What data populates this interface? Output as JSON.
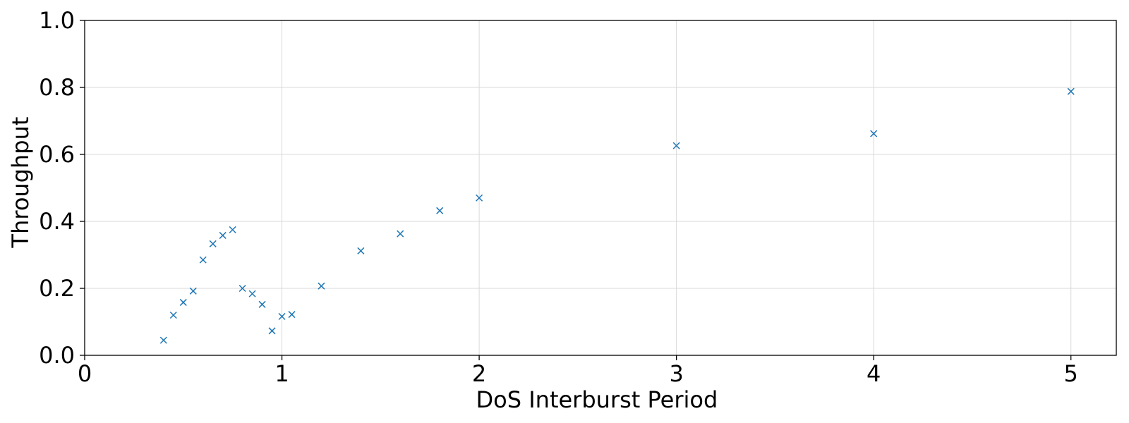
{
  "chart_data": {
    "type": "scatter",
    "title": "",
    "xlabel": "DoS Interburst Period",
    "ylabel": "Throughput",
    "xlim": [
      0,
      5.23
    ],
    "ylim": [
      0,
      1.0
    ],
    "x_ticks": [
      "0",
      "1",
      "2",
      "3",
      "4",
      "5"
    ],
    "y_ticks": [
      "0.0",
      "0.2",
      "0.4",
      "0.6",
      "0.8",
      "1.0"
    ],
    "grid": true,
    "marker": "x",
    "marker_color": "#1f77b4",
    "series": [
      {
        "x": [
          0.4,
          0.45,
          0.5,
          0.55,
          0.6,
          0.65,
          0.7,
          0.75,
          0.8,
          0.85,
          0.9,
          0.95,
          1.0,
          1.05,
          1.2,
          1.4,
          1.6,
          1.8,
          2.0,
          3.0,
          4.0,
          5.0
        ],
        "y": [
          0.045,
          0.12,
          0.158,
          0.192,
          0.285,
          0.333,
          0.358,
          0.375,
          0.2,
          0.184,
          0.152,
          0.073,
          0.116,
          0.122,
          0.207,
          0.312,
          0.363,
          0.432,
          0.47,
          0.626,
          0.662,
          0.788
        ]
      }
    ]
  }
}
